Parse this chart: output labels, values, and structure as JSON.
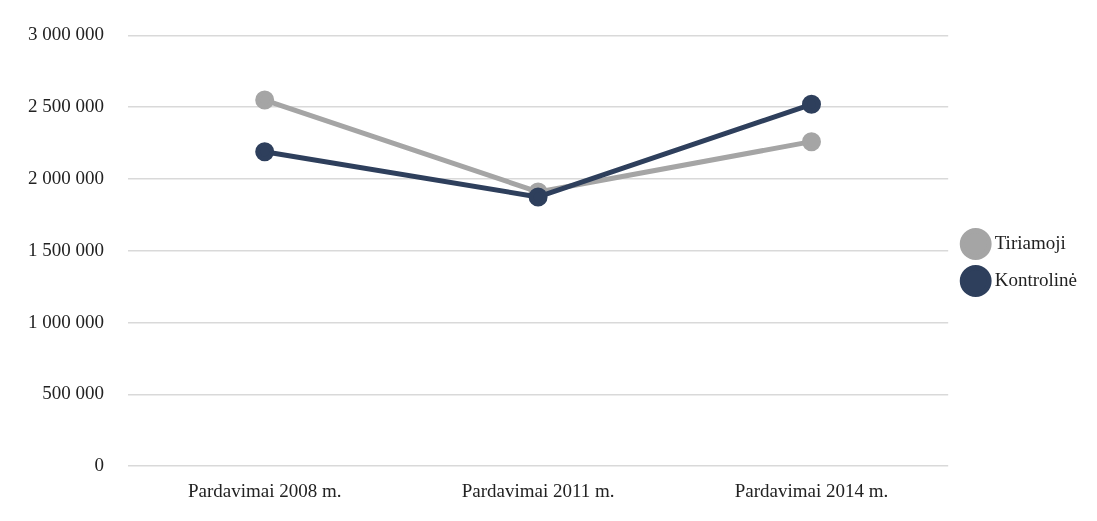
{
  "chart_data": {
    "type": "line",
    "categories": [
      "Pardavimai 2008 m.",
      "Pardavimai 2011 m.",
      "Pardavimai 2014 m."
    ],
    "series": [
      {
        "name": "Tiriamoji",
        "color": "#a5a5a5",
        "values": [
          2550000,
          1910000,
          2260000
        ]
      },
      {
        "name": "Kontrolinė",
        "color": "#2e3f5c",
        "values": [
          2190000,
          1875000,
          2520000
        ]
      }
    ],
    "ylim": [
      0,
      3000000
    ],
    "yticks": [
      {
        "value": 0,
        "label": "0"
      },
      {
        "value": 500000,
        "label": "500 000"
      },
      {
        "value": 1000000,
        "label": "1 000 000"
      },
      {
        "value": 1500000,
        "label": "1 500 000"
      },
      {
        "value": 2000000,
        "label": "2 000 000"
      },
      {
        "value": 2500000,
        "label": "2 500 000"
      },
      {
        "value": 3000000,
        "label": "3 000 000"
      }
    ],
    "grid": "y",
    "legend": "right",
    "marker": "circle",
    "line_style": "solid"
  }
}
